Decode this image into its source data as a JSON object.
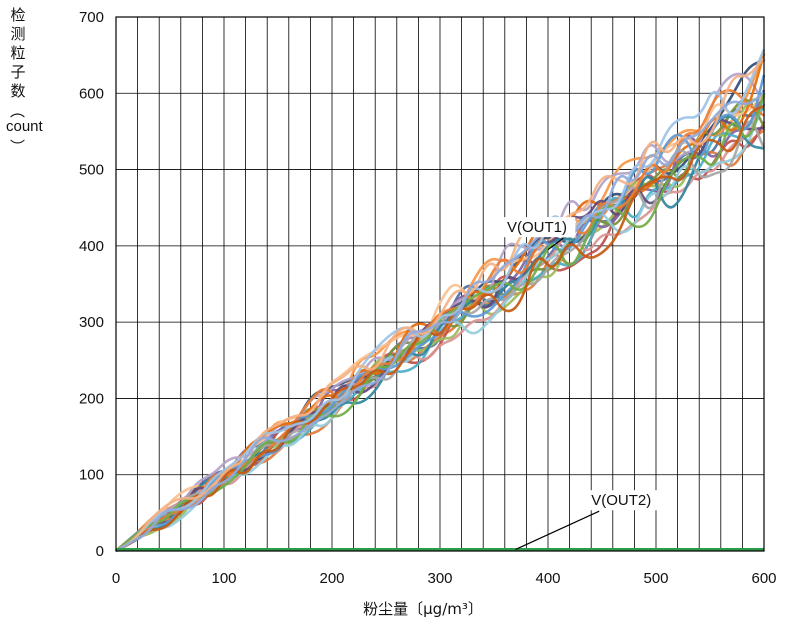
{
  "chart_data": {
    "type": "line",
    "ylabel_chars": [
      "检",
      "测",
      "粒",
      "子",
      "数"
    ],
    "ylabel_paren_open": "︵",
    "ylabel_unit": "count",
    "ylabel_paren_close": "︶",
    "xlabel": "粉尘量〔μg/m³〕",
    "xlim": [
      0,
      600
    ],
    "ylim": [
      0,
      700
    ],
    "x_ticks": [
      0,
      100,
      200,
      300,
      400,
      500,
      600
    ],
    "y_ticks": [
      0,
      100,
      200,
      300,
      400,
      500,
      600,
      700
    ],
    "grid": true,
    "annotations": [
      {
        "text": "V(OUT1)",
        "x": 362,
        "y": 418,
        "arrow_to": [
          400,
          395
        ]
      },
      {
        "text": "V(OUT2)",
        "x": 440,
        "y": 60,
        "arrow_to": [
          370,
          2
        ]
      }
    ],
    "series_out1_count": 24,
    "out1_trend": {
      "x": [
        0,
        60,
        120,
        180,
        240,
        300,
        360,
        420,
        480,
        540,
        600
      ],
      "y": [
        0,
        60,
        120,
        180,
        240,
        300,
        360,
        420,
        480,
        540,
        600
      ]
    },
    "out2": {
      "x": [
        0,
        600
      ],
      "y": [
        2,
        2
      ],
      "color": "#2e9b4a"
    },
    "colors": [
      "#4a6fa5",
      "#e07b39",
      "#c0504d",
      "#9bbb59",
      "#8064a2",
      "#4bacc6",
      "#f79646",
      "#2c4d75",
      "#d99694",
      "#77933c",
      "#b3a2c7",
      "#93cddd",
      "#fac090",
      "#31859c",
      "#e46c0a",
      "#604a7b",
      "#a6a6a6",
      "#5b9bd5",
      "#ed7d31",
      "#70ad47",
      "#c55a11",
      "#9dc3e6",
      "#f4b183",
      "#8faadc"
    ]
  }
}
